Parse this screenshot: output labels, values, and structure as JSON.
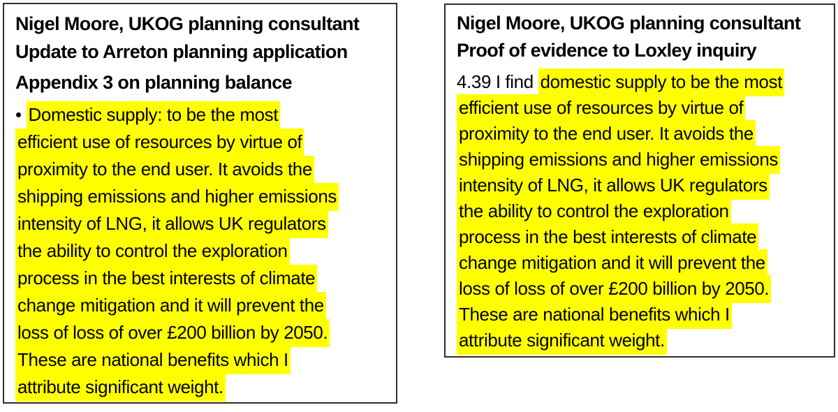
{
  "colors": {
    "highlight": "#ffff00",
    "border": "#2e2e2e",
    "text": "#000000",
    "background": "#ffffff"
  },
  "left_panel": {
    "title_line1": "Nigel Moore, UKOG planning consultant",
    "title_line2": "Update to Arreton planning application",
    "subtitle": "Appendix 3 on planning balance",
    "body_lines": [
      {
        "plain": "• ",
        "highlight": "Domestic supply: to be the most"
      },
      {
        "plain": "",
        "highlight": "efficient use of resources by virtue of"
      },
      {
        "plain": "",
        "highlight": "proximity to the end user. It avoids the"
      },
      {
        "plain": "",
        "highlight": "shipping emissions and higher emissions"
      },
      {
        "plain": "",
        "highlight": "intensity of LNG, it allows UK regulators"
      },
      {
        "plain": "",
        "highlight": "the ability to control the exploration"
      },
      {
        "plain": "",
        "highlight": "process in the best interests of climate"
      },
      {
        "plain": "",
        "highlight": "change mitigation and it will prevent the"
      },
      {
        "plain": "",
        "highlight": "loss of loss of over £200 billion by 2050."
      },
      {
        "plain": "",
        "highlight": "These are national benefits which I"
      },
      {
        "plain": "",
        "highlight": "attribute significant weight."
      }
    ]
  },
  "right_panel": {
    "title_line1": "Nigel Moore, UKOG planning consultant",
    "title_line2": "Proof of evidence to Loxley inquiry",
    "body_lines": [
      {
        "plain": "4.39 I find ",
        "highlight": "domestic supply to be the most"
      },
      {
        "plain": "",
        "highlight": "efficient use of resources by virtue of"
      },
      {
        "plain": "",
        "highlight": "proximity to the end user. It avoids the"
      },
      {
        "plain": "",
        "highlight": "shipping emissions and higher emissions"
      },
      {
        "plain": "",
        "highlight": "intensity of LNG, it allows UK regulators"
      },
      {
        "plain": "",
        "highlight": "the ability to control the exploration"
      },
      {
        "plain": "",
        "highlight": "process in the best interests of climate"
      },
      {
        "plain": "",
        "highlight": "change mitigation and it will prevent the"
      },
      {
        "plain": "",
        "highlight": "loss of loss of over £200 billion by 2050."
      },
      {
        "plain": "",
        "highlight": "These are national benefits which I"
      },
      {
        "plain": "",
        "highlight": "attribute significant weight."
      }
    ]
  }
}
